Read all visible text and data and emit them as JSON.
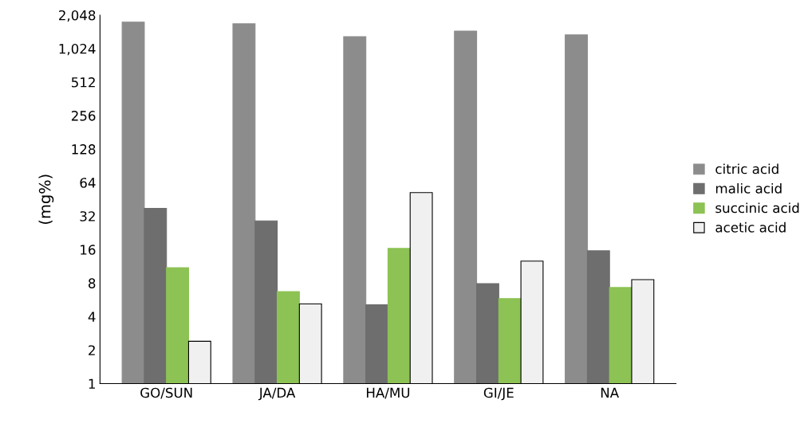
{
  "chart_data": {
    "type": "bar",
    "ylabel": "(mg%)",
    "log": "y",
    "categories": [
      "GO/SUN",
      "JA/DA",
      "HA/MU",
      "GI/JE",
      "NA"
    ],
    "series": [
      {
        "name": "citric acid",
        "color": "#8c8c8c",
        "values": [
          1770,
          1710,
          1310,
          1470,
          1360
        ]
      },
      {
        "name": "malic acid",
        "color": "#6e6e6e",
        "values": [
          37.5,
          29,
          5.1,
          7.9,
          15.6
        ]
      },
      {
        "name": "succinic acid",
        "color": "#8dc254",
        "values": [
          11,
          6.7,
          16.4,
          5.8,
          7.3
        ]
      },
      {
        "name": "acetic acid",
        "color": "#f0f0f0",
        "values": [
          2.4,
          5.2,
          52,
          12.6,
          8.6
        ]
      }
    ],
    "ylim": [
      1,
      2048
    ],
    "yticks": [
      1,
      2,
      4,
      8,
      16,
      32,
      64,
      128,
      256,
      512,
      {
        "value": 1024,
        "label": "1,024"
      },
      {
        "value": 2048,
        "label": "2,048"
      }
    ],
    "grid": false,
    "legend": "right"
  }
}
